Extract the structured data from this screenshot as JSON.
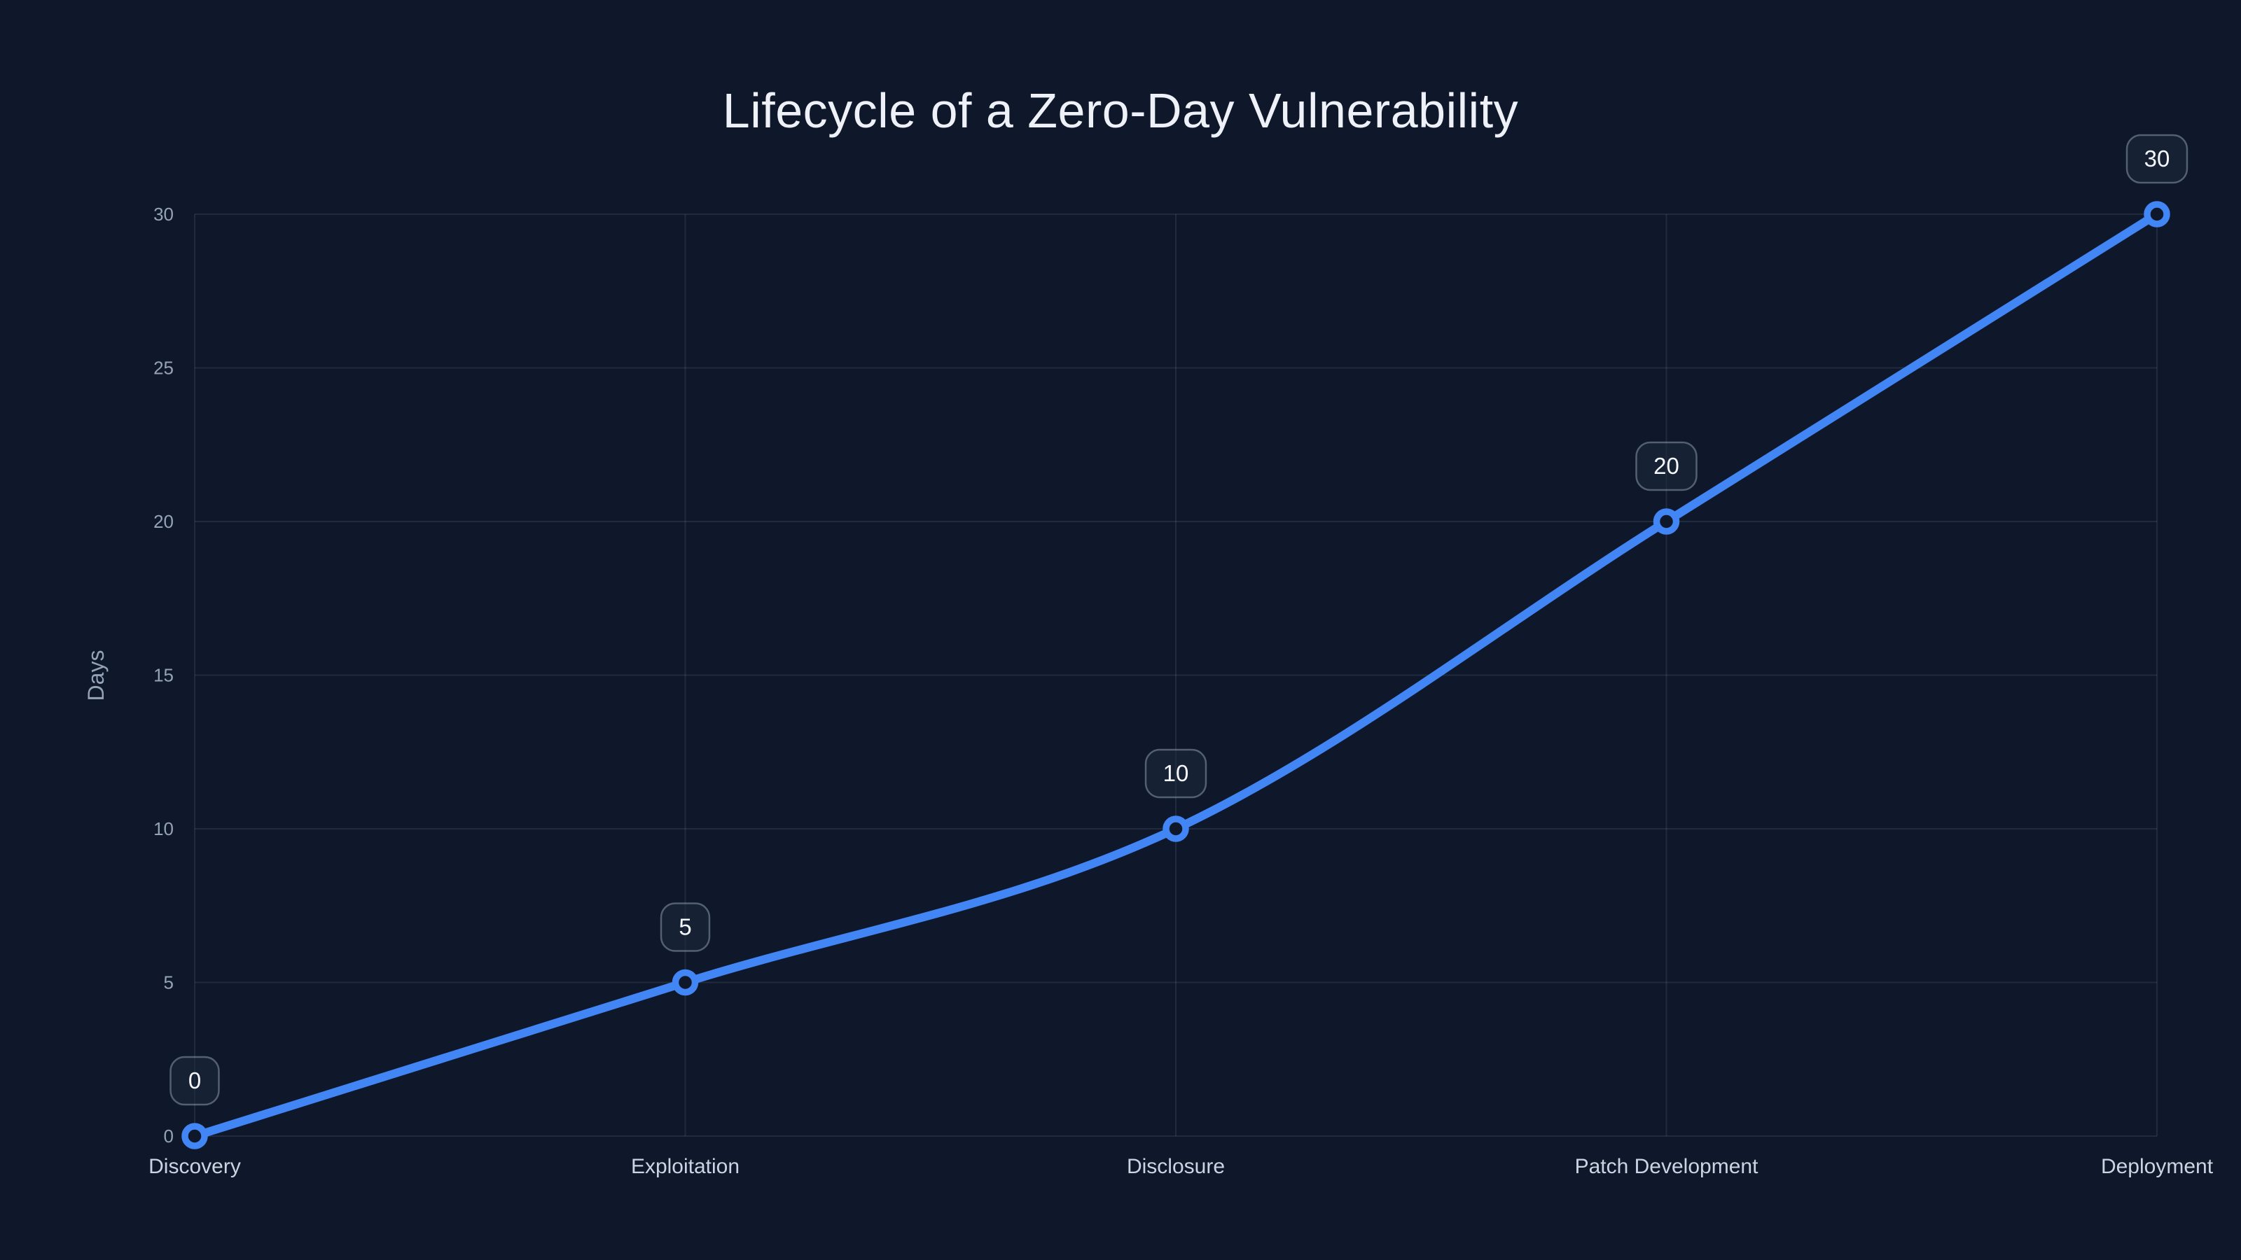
{
  "chart_data": {
    "type": "line",
    "title": "Lifecycle of a Zero-Day Vulnerability",
    "categories": [
      "Discovery",
      "Exploitation",
      "Disclosure",
      "Patch Development",
      "Deployment"
    ],
    "values": [
      0,
      5,
      10,
      20,
      30
    ],
    "point_labels": [
      "0",
      "5",
      "10",
      "20",
      "30"
    ],
    "xlabel": "",
    "ylabel": "Days",
    "ylim": [
      0,
      30
    ],
    "yticks": [
      0,
      5,
      10,
      15,
      20,
      25,
      30
    ],
    "grid": true,
    "legend": "none",
    "marker_style": "open-circle",
    "colors": {
      "background": "#0f172a",
      "line": "#4285f5",
      "grid": "rgba(148,163,184,0.15)",
      "title_text": "#eef2f8",
      "tick_text": "#94a3b8",
      "category_text": "#cbd5e1",
      "badge_fill": "rgba(30,41,59,0.55)",
      "badge_border": "rgba(148,163,184,0.5)",
      "badge_text": "#f4f7fb"
    }
  }
}
